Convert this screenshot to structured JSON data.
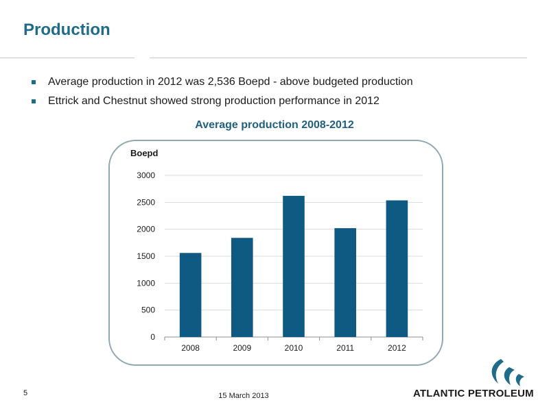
{
  "slide": {
    "title": "Production",
    "bullets": [
      "Average production in 2012 was 2,536 Boepd - above budgeted production",
      "Ettrick and Chestnut showed strong production performance in 2012"
    ],
    "page_number": "5",
    "date": "15 March 2013",
    "logo_text": "ATLANTIC PETROLEUM"
  },
  "colors": {
    "title": "#1f6b8a",
    "chart_title": "#1f5f80",
    "bar": "#0f5a82",
    "frame": "#8fa8b0",
    "grid": "#d9d9d9"
  },
  "chart_data": {
    "type": "bar",
    "title": "Average production 2008-2012",
    "ylabel": "Boepd",
    "xlabel": "",
    "categories": [
      "2008",
      "2009",
      "2010",
      "2011",
      "2012"
    ],
    "values": [
      1560,
      1840,
      2620,
      2020,
      2536
    ],
    "ylim": [
      0,
      3000
    ],
    "yticks": [
      0,
      500,
      1000,
      1500,
      2000,
      2500,
      3000
    ],
    "grid": true,
    "legend": "none"
  }
}
